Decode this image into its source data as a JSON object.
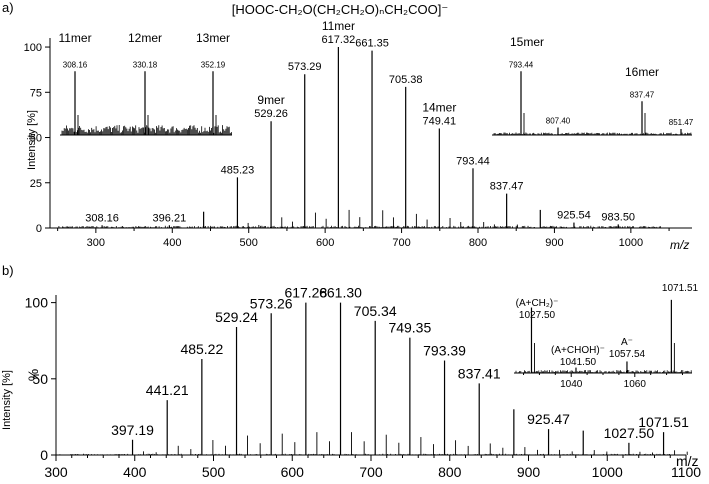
{
  "title": "[HOOC-CH₂O(CH₂CH₂O)ₙCH₂COO]⁻",
  "chart_data": [
    {
      "panel": "a)",
      "type": "bar",
      "ylabel": "Intensity [%]",
      "xlabel": "m/z",
      "xlim": [
        240,
        1080
      ],
      "ylim": [
        0,
        105
      ],
      "xticks": [
        300,
        400,
        500,
        600,
        700,
        800,
        900,
        1000
      ],
      "yticks": [
        0,
        25,
        50,
        75,
        100
      ],
      "peaks": [
        {
          "x": 308.16,
          "y": 1.5,
          "label": "308.16"
        },
        {
          "x": 396.21,
          "y": 1.5,
          "label": "396.21"
        },
        {
          "x": 441.0,
          "y": 9,
          "label": ""
        },
        {
          "x": 485.23,
          "y": 28,
          "label": "485.23"
        },
        {
          "x": 529.26,
          "y": 59,
          "label": "529.26"
        },
        {
          "x": 573.29,
          "y": 85,
          "label": "573.29"
        },
        {
          "x": 617.32,
          "y": 100,
          "label": "617.32"
        },
        {
          "x": 661.35,
          "y": 98,
          "label": "661.35"
        },
        {
          "x": 705.38,
          "y": 78,
          "label": "705.38"
        },
        {
          "x": 749.41,
          "y": 55,
          "label": "749.41"
        },
        {
          "x": 793.44,
          "y": 33,
          "label": "793.44"
        },
        {
          "x": 837.47,
          "y": 19,
          "label": "837.47"
        },
        {
          "x": 881.5,
          "y": 10,
          "label": ""
        },
        {
          "x": 925.54,
          "y": 3,
          "label": "925.54"
        },
        {
          "x": 983.5,
          "y": 2,
          "label": "983.50"
        }
      ],
      "annotations": [
        {
          "text": "9mer",
          "x": 529.26
        },
        {
          "text": "11mer",
          "x": 617.32
        },
        {
          "text": "14mer",
          "x": 749.41
        }
      ],
      "insets": [
        {
          "peaks": [
            {
              "label": "308.16",
              "y": 0.85
            },
            {
              "label": "330.18",
              "y": 0.85
            },
            {
              "label": "352.19",
              "y": 0.85
            }
          ],
          "markers": [
            "11mer",
            "12mer",
            "13mer"
          ]
        },
        {
          "peaks": [
            {
              "label": "793.44",
              "y": 0.85
            },
            {
              "label": "807.40",
              "y": 0.1
            },
            {
              "label": "837.47",
              "y": 0.45
            },
            {
              "label": "851.47",
              "y": 0.08
            }
          ],
          "markers": [
            "15mer",
            "16mer"
          ]
        }
      ]
    },
    {
      "panel": "b)",
      "type": "bar",
      "ylabel": "Intensity [%]",
      "ylabel_inner": "%",
      "xlabel": "m/z",
      "xlim": [
        300,
        1100
      ],
      "ylim": [
        0,
        105
      ],
      "xticks": [
        300,
        400,
        500,
        600,
        700,
        800,
        900,
        1000,
        1100
      ],
      "yticks": [
        0,
        50,
        100
      ],
      "peaks": [
        {
          "x": 397.19,
          "y": 10,
          "label": "397.19"
        },
        {
          "x": 441.21,
          "y": 36,
          "label": "441.21"
        },
        {
          "x": 485.22,
          "y": 63,
          "label": "485.22"
        },
        {
          "x": 529.24,
          "y": 84,
          "label": "529.24"
        },
        {
          "x": 573.26,
          "y": 93,
          "label": "573.26"
        },
        {
          "x": 617.28,
          "y": 100,
          "label": "617.28"
        },
        {
          "x": 661.3,
          "y": 100,
          "label": "661.30"
        },
        {
          "x": 705.34,
          "y": 88,
          "label": "705.34"
        },
        {
          "x": 749.35,
          "y": 77,
          "label": "749.35"
        },
        {
          "x": 793.39,
          "y": 62,
          "label": "793.39"
        },
        {
          "x": 837.41,
          "y": 47,
          "label": "837.41"
        },
        {
          "x": 881.4,
          "y": 30,
          "label": ""
        },
        {
          "x": 925.47,
          "y": 17,
          "label": "925.47"
        },
        {
          "x": 969.5,
          "y": 16,
          "label": ""
        },
        {
          "x": 1027.5,
          "y": 8,
          "label": "1027.50"
        },
        {
          "x": 1071.51,
          "y": 15,
          "label": "1071.51"
        }
      ],
      "inset": {
        "xticks": [
          1040,
          1060
        ],
        "xlim": [
          1022,
          1078
        ],
        "peaks": [
          {
            "x": 1027.5,
            "y": 0.85,
            "label": "1027.50",
            "ion": "(A+CH₂)⁻"
          },
          {
            "x": 1041.5,
            "y": 0.07,
            "label": "1041.50",
            "ion": "(A+CHOH)⁻"
          },
          {
            "x": 1057.54,
            "y": 0.15,
            "label": "1057.54",
            "ion": "A⁻"
          },
          {
            "x": 1071.51,
            "y": 0.95,
            "label": "1071.51",
            "ion": ""
          }
        ]
      }
    }
  ]
}
